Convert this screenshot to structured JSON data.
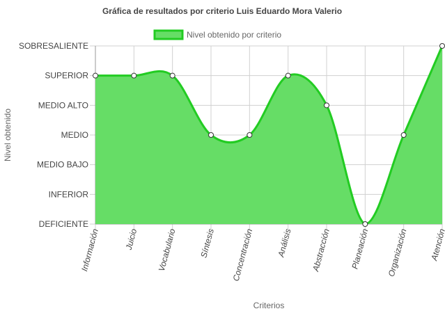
{
  "chart_data": {
    "type": "area",
    "title": "Gráfica de resultados por criterio Luis Eduardo Mora Valerio",
    "xlabel": "Criterios",
    "ylabel": "Nivel obtenido",
    "legend": {
      "label": "Nivel obtenido por criterio",
      "placement": "top-center"
    },
    "y_levels": [
      "DEFICIENTE",
      "INFERIOR",
      "MEDIO BAJO",
      "MEDIO",
      "MEDIO ALTO",
      "SUPERIOR",
      "SOBRESALIENTE"
    ],
    "ylim": [
      0,
      6
    ],
    "grid": true,
    "categories": [
      "Información",
      "Juicio",
      "Vocabulario",
      "Síntesis",
      "Concentración",
      "Análisis",
      "Abstracción",
      "Planeación",
      "Organización",
      "Atención"
    ],
    "series": [
      {
        "name": "Nivel obtenido por criterio",
        "values": [
          5,
          5,
          5,
          3,
          3,
          5,
          4,
          0,
          3,
          6
        ]
      }
    ],
    "colors": {
      "fill": "#66dd66",
      "line": "#22cc22",
      "grid": "#d0d0d0",
      "axis": "#999999",
      "text": "#444444"
    }
  }
}
